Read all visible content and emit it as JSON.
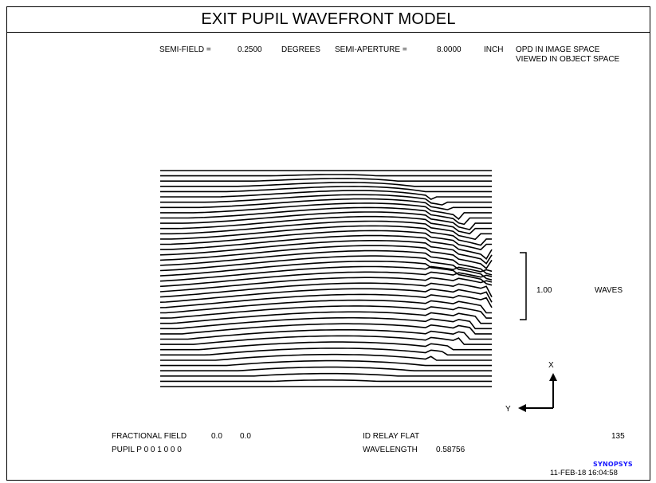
{
  "title": "EXIT PUPIL WAVEFRONT MODEL",
  "header": {
    "semi_field_label": "SEMI-FIELD =",
    "semi_field_value": "0.2500",
    "semi_field_unit": "DEGREES",
    "semi_aperture_label": "SEMI-APERTURE =",
    "semi_aperture_value": "8.0000",
    "semi_aperture_unit": "INCH",
    "opd_line1": "OPD IN IMAGE SPACE",
    "opd_line2": "VIEWED IN OBJECT SPACE"
  },
  "scale": {
    "value": "1.00",
    "unit": "WAVES"
  },
  "axes": {
    "x_label": "X",
    "y_label": "Y"
  },
  "footer": {
    "fractional_field_label": "FRACTIONAL FIELD",
    "fractional_field_x": "0.0",
    "fractional_field_y": "0.0",
    "pupil_label": "PUPIL P 0 0 1 0 0 0",
    "system_name": "ID RELAY FLAT",
    "wavelength_label": "WAVELENGTH",
    "wavelength_value": "0.58756",
    "number": "135",
    "brand": "SYNOPSYS",
    "datetime": "11-FEB-18  16:04:58"
  },
  "colors": {
    "lines": "#000000",
    "brand": "#1a1aff"
  },
  "wavefront": {
    "profile_lines": 42,
    "display": "isometric line scan"
  }
}
